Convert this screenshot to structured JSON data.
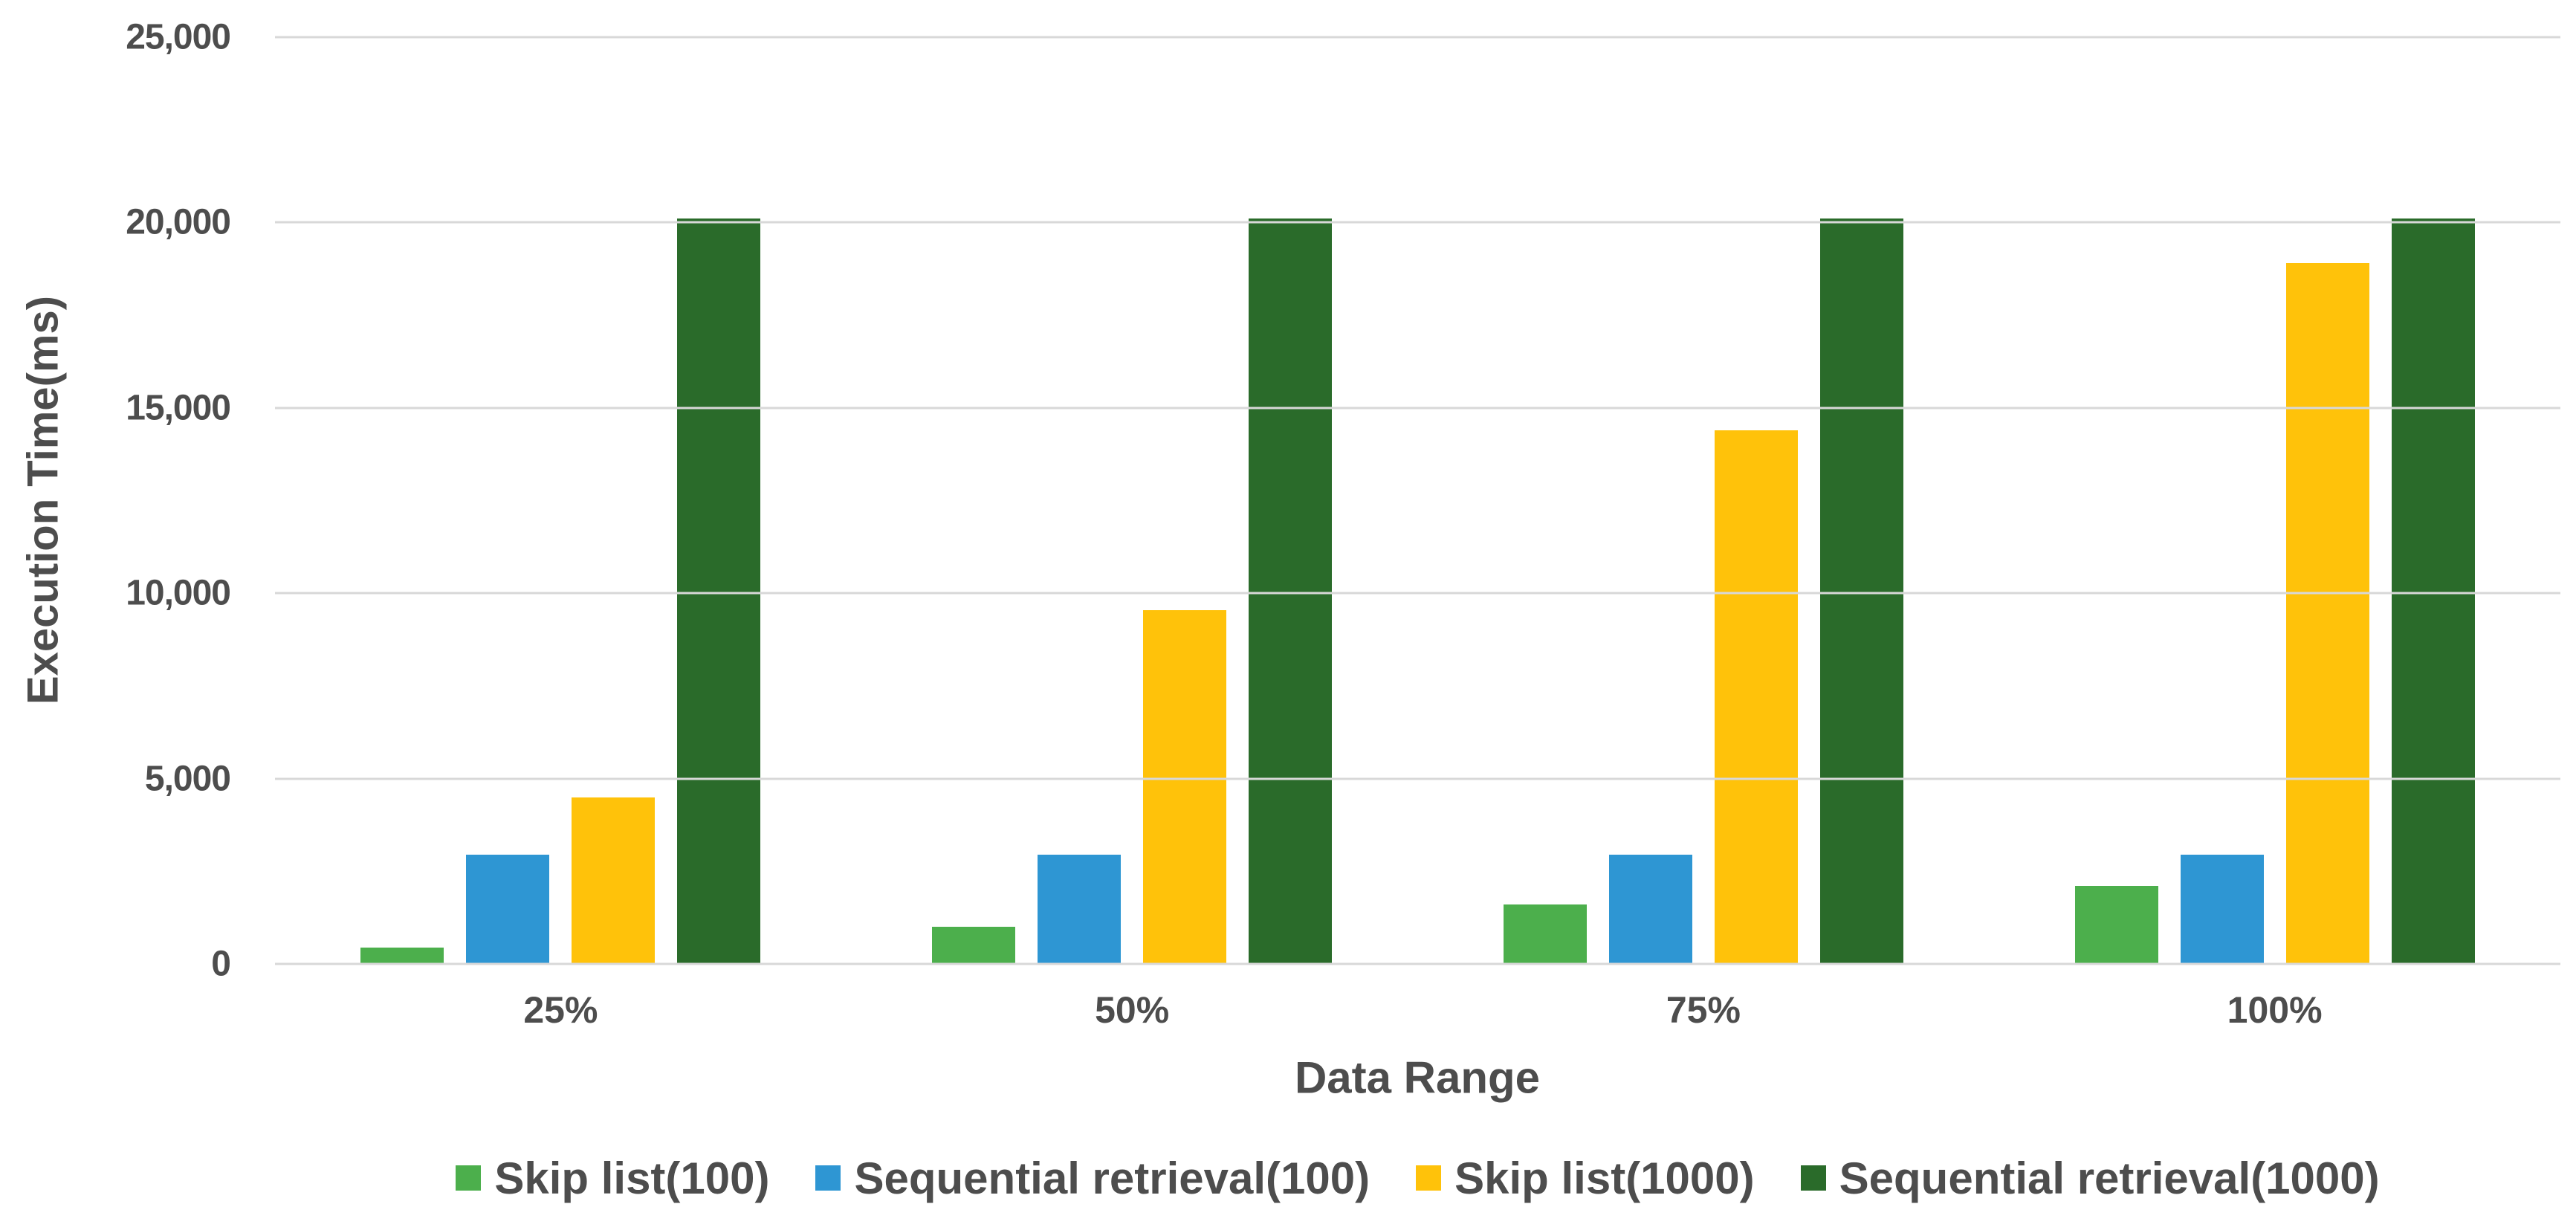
{
  "chart_data": {
    "type": "bar",
    "title": "",
    "categories": [
      "25%",
      "50%",
      "75%",
      "100%"
    ],
    "series": [
      {
        "name": "Skip list(100)",
        "color": "#4CAF4C",
        "values": [
          450,
          1000,
          1600,
          2100
        ]
      },
      {
        "name": "Sequential retrieval(100)",
        "color": "#2E96D3",
        "values": [
          2950,
          2950,
          2950,
          2950
        ]
      },
      {
        "name": "Skip list(1000)",
        "color": "#FFC20A",
        "values": [
          4500,
          9550,
          14400,
          18900
        ]
      },
      {
        "name": "Sequential retrieval(1000)",
        "color": "#2A6B2A",
        "values": [
          20100,
          20100,
          20100,
          20100
        ]
      }
    ],
    "xlabel": "Data Range",
    "ylabel": "Execution Time(ms)",
    "ylim": [
      0,
      25000
    ],
    "ytick_step": 5000,
    "yticks": [
      0,
      5000,
      10000,
      15000,
      20000,
      25000
    ],
    "ytick_labels": [
      "0",
      "5,000",
      "10,000",
      "15,000",
      "20,000",
      "25,000"
    ],
    "grid": true,
    "legend_position": "bottom",
    "colors": {
      "text": "#4D4D4D",
      "grid": "#D8D8D8",
      "background": "#FFFFFF"
    }
  }
}
